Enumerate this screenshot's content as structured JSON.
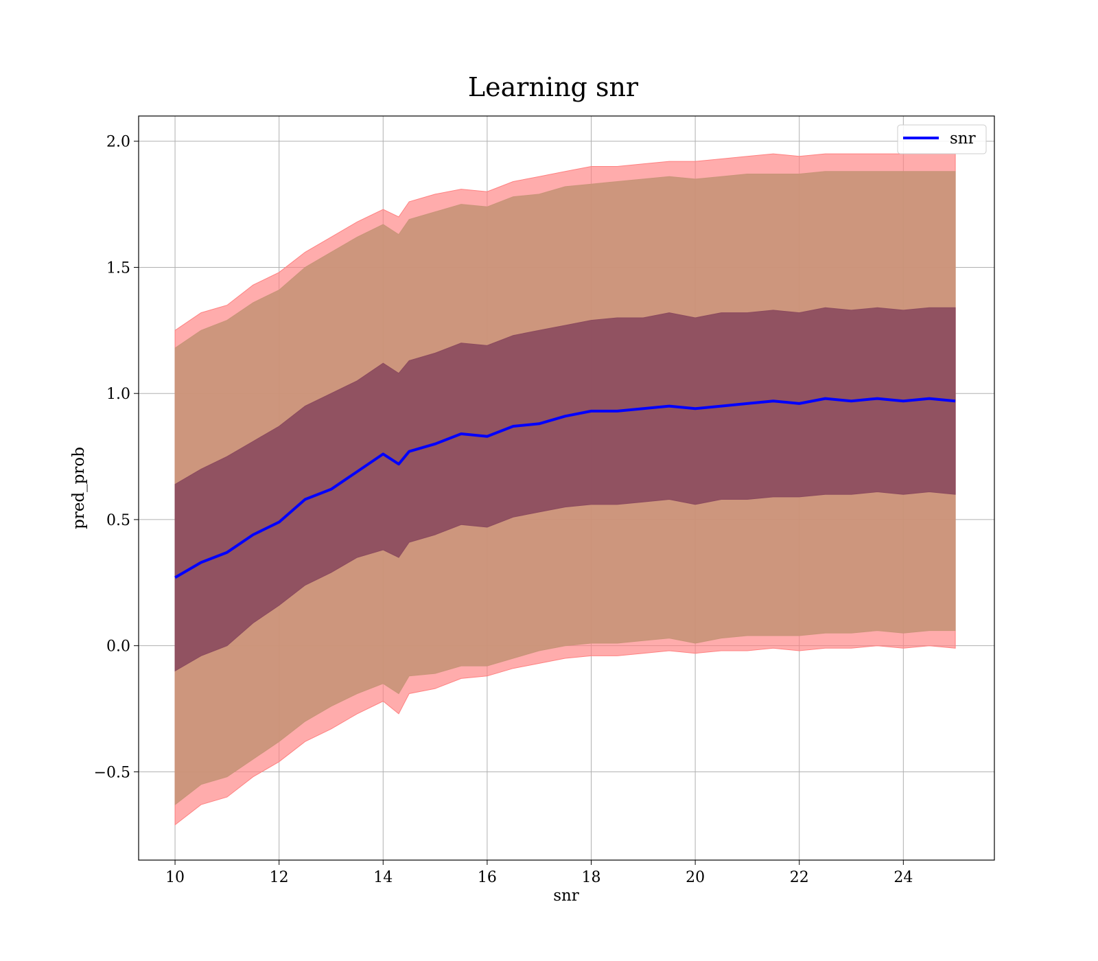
{
  "chart_data": {
    "type": "area",
    "title": "Learning snr",
    "xlabel": "snr",
    "ylabel": "pred_prob",
    "xlim": [
      9.3,
      25.75
    ],
    "ylim": [
      -0.85,
      2.1
    ],
    "xticks": [
      10,
      12,
      14,
      16,
      18,
      20,
      22,
      24
    ],
    "xtick_labels": [
      "10",
      "12",
      "14",
      "16",
      "18",
      "20",
      "22",
      "24"
    ],
    "yticks": [
      -0.5,
      0.0,
      0.5,
      1.0,
      1.5,
      2.0
    ],
    "ytick_labels": [
      "−0.5",
      "0.0",
      "0.5",
      "1.0",
      "1.5",
      "2.0"
    ],
    "grid": true,
    "legend": {
      "position": "top-right",
      "entries": [
        {
          "label": "snr",
          "color": "#0000ff"
        }
      ]
    },
    "x": [
      10.0,
      10.5,
      11.0,
      11.5,
      12.0,
      12.5,
      13.0,
      13.5,
      14.0,
      14.3,
      14.5,
      15.0,
      15.5,
      16.0,
      16.5,
      17.0,
      17.5,
      18.0,
      18.5,
      19.0,
      19.5,
      20.0,
      20.5,
      21.0,
      21.5,
      22.0,
      22.5,
      23.0,
      23.5,
      24.0,
      24.5,
      25.0
    ],
    "series": [
      {
        "name": "snr",
        "role": "mean",
        "color": "#0000ff",
        "values": [
          0.27,
          0.33,
          0.37,
          0.44,
          0.49,
          0.58,
          0.62,
          0.69,
          0.76,
          0.72,
          0.77,
          0.8,
          0.84,
          0.83,
          0.87,
          0.88,
          0.91,
          0.93,
          0.93,
          0.94,
          0.95,
          0.94,
          0.95,
          0.96,
          0.97,
          0.96,
          0.98,
          0.97,
          0.98,
          0.97,
          0.98,
          0.97
        ]
      },
      {
        "role": "band-1std",
        "color": "#8b4a5e",
        "lower": [
          -0.1,
          -0.04,
          0.0,
          0.09,
          0.16,
          0.24,
          0.29,
          0.35,
          0.38,
          0.35,
          0.41,
          0.44,
          0.48,
          0.47,
          0.51,
          0.53,
          0.55,
          0.56,
          0.56,
          0.57,
          0.58,
          0.56,
          0.58,
          0.58,
          0.59,
          0.59,
          0.6,
          0.6,
          0.61,
          0.6,
          0.61,
          0.6
        ],
        "upper": [
          0.64,
          0.7,
          0.75,
          0.81,
          0.87,
          0.95,
          1.0,
          1.05,
          1.12,
          1.08,
          1.13,
          1.16,
          1.2,
          1.19,
          1.23,
          1.25,
          1.27,
          1.29,
          1.3,
          1.3,
          1.32,
          1.3,
          1.32,
          1.32,
          1.33,
          1.32,
          1.34,
          1.33,
          1.34,
          1.33,
          1.34,
          1.34
        ]
      },
      {
        "role": "band-2std",
        "color": "#c89478",
        "lower": [
          -0.63,
          -0.55,
          -0.52,
          -0.45,
          -0.38,
          -0.3,
          -0.24,
          -0.19,
          -0.15,
          -0.19,
          -0.12,
          -0.11,
          -0.08,
          -0.08,
          -0.05,
          -0.02,
          0.0,
          0.01,
          0.01,
          0.02,
          0.03,
          0.01,
          0.03,
          0.04,
          0.04,
          0.04,
          0.05,
          0.05,
          0.06,
          0.05,
          0.06,
          0.06
        ],
        "upper": [
          1.18,
          1.25,
          1.29,
          1.36,
          1.41,
          1.5,
          1.56,
          1.62,
          1.67,
          1.63,
          1.69,
          1.72,
          1.75,
          1.74,
          1.78,
          1.79,
          1.82,
          1.83,
          1.84,
          1.85,
          1.86,
          1.85,
          1.86,
          1.87,
          1.87,
          1.87,
          1.88,
          1.88,
          1.88,
          1.88,
          1.88,
          1.88
        ]
      },
      {
        "role": "band-outer",
        "color": "#ff8080",
        "lower": [
          -0.71,
          -0.63,
          -0.6,
          -0.52,
          -0.46,
          -0.38,
          -0.33,
          -0.27,
          -0.22,
          -0.27,
          -0.19,
          -0.17,
          -0.13,
          -0.12,
          -0.09,
          -0.07,
          -0.05,
          -0.04,
          -0.04,
          -0.03,
          -0.02,
          -0.03,
          -0.02,
          -0.02,
          -0.01,
          -0.02,
          -0.01,
          -0.01,
          0.0,
          -0.01,
          0.0,
          -0.01
        ],
        "upper": [
          1.25,
          1.32,
          1.35,
          1.43,
          1.48,
          1.56,
          1.62,
          1.68,
          1.73,
          1.7,
          1.76,
          1.79,
          1.81,
          1.8,
          1.84,
          1.86,
          1.88,
          1.9,
          1.9,
          1.91,
          1.92,
          1.92,
          1.93,
          1.94,
          1.95,
          1.94,
          1.95,
          1.95,
          1.95,
          1.95,
          1.95,
          1.95
        ]
      }
    ]
  }
}
